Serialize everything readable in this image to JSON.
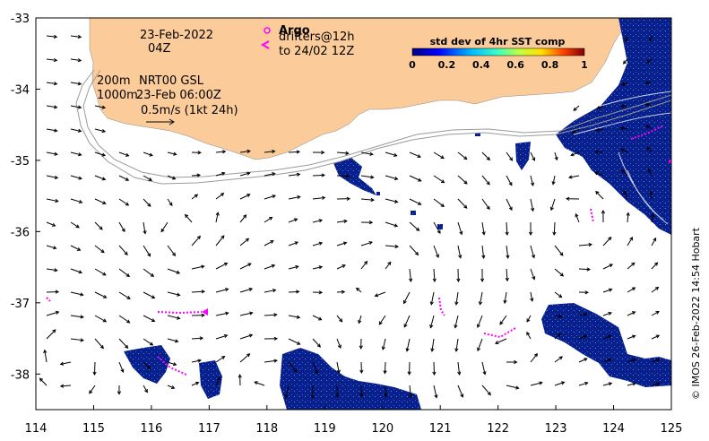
{
  "map": {
    "x_ticks": [
      "114",
      "115",
      "116",
      "117",
      "118",
      "119",
      "120",
      "121",
      "122",
      "123",
      "124",
      "125"
    ],
    "y_ticks": [
      "-33",
      "-34",
      "-35",
      "-36",
      "-37",
      "-38"
    ],
    "lon_range": [
      114,
      125
    ],
    "lat_range": [
      -38.5,
      -33
    ]
  },
  "annotations": {
    "date": "23-Feb-2022",
    "hour": "04Z",
    "argo_label": "Argo",
    "drifters_label": "drifters@12h",
    "drifters_until": "to 24/02 12Z",
    "contour_200": "200m",
    "contour_1000": "1000m",
    "nrt_label": "NRT00 GSL",
    "nrt_time": "23-Feb 06:00Z",
    "scale_label": "0.5m/s (1kt 24h)"
  },
  "colorbar": {
    "title": "std dev of 4hr SST comp",
    "ticks": [
      "0",
      "0.2",
      "0.4",
      "0.6",
      "0.8",
      "1"
    ]
  },
  "credit": "© IMOS 26-Feb-2022 14:54 Hobart",
  "colors": {
    "land": "#fbcb99",
    "sst_low": "#0a1e8c",
    "drifter": "#ff00ff",
    "arrow": "#000000"
  }
}
